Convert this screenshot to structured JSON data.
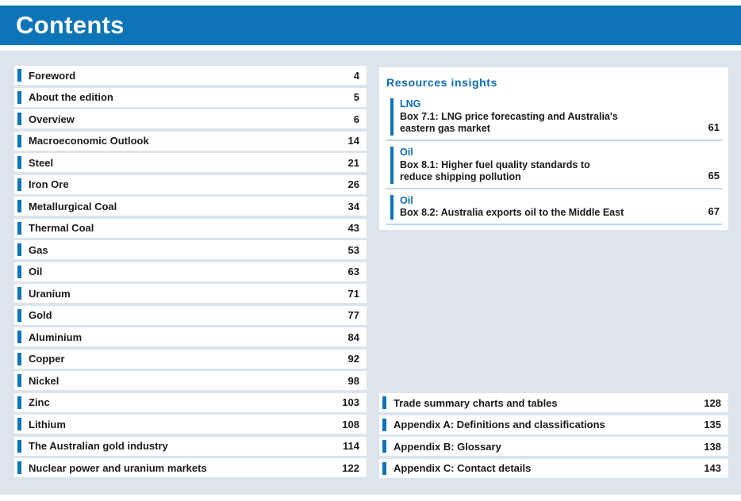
{
  "header": {
    "title": "Contents"
  },
  "colors": {
    "header_blue": "#0d74b8",
    "accent_blue": "#0d74b8",
    "insights_title_blue": "#0c6cb3",
    "category_blue": "#0c6cb3",
    "page_background": "#dde4ec",
    "row_background": "#ffffff",
    "text_color": "#1a1a1a",
    "divider_blue": "#bcd9ee"
  },
  "toc_left": {
    "items": [
      {
        "title": "Foreword",
        "page": "4"
      },
      {
        "title": "About the edition",
        "page": "5"
      },
      {
        "title": "Overview",
        "page": "6"
      },
      {
        "title": "Macroeconomic Outlook",
        "page": "14"
      },
      {
        "title": "Steel",
        "page": "21"
      },
      {
        "title": "Iron Ore",
        "page": "26"
      },
      {
        "title": "Metallurgical Coal",
        "page": "34"
      },
      {
        "title": "Thermal Coal",
        "page": "43"
      },
      {
        "title": "Gas",
        "page": "53"
      },
      {
        "title": "Oil",
        "page": "63"
      },
      {
        "title": "Uranium",
        "page": "71"
      },
      {
        "title": "Gold",
        "page": "77"
      },
      {
        "title": "Aluminium",
        "page": "84"
      },
      {
        "title": "Copper",
        "page": "92"
      },
      {
        "title": "Nickel",
        "page": "98"
      },
      {
        "title": "Zinc",
        "page": "103"
      },
      {
        "title": "Lithium",
        "page": "108"
      },
      {
        "title": "The Australian gold industry",
        "page": "114"
      },
      {
        "title": "Nuclear power and uranium markets",
        "page": "122"
      }
    ]
  },
  "insights": {
    "title": "Resources insights",
    "items": [
      {
        "category": "LNG",
        "text": "Box 7.1: LNG price forecasting and Australia's\neastern gas market",
        "page": "61"
      },
      {
        "category": "Oil",
        "text": "Box 8.1: Higher fuel quality standards to\nreduce shipping pollution",
        "page": "65"
      },
      {
        "category": "Oil",
        "text": "Box 8.2: Australia exports oil to the Middle East",
        "page": "67"
      }
    ]
  },
  "toc_right": {
    "items": [
      {
        "title": "Trade summary charts and tables",
        "page": "128"
      },
      {
        "title": "Appendix A: Definitions and classifications",
        "page": "135"
      },
      {
        "title": "Appendix B: Glossary",
        "page": "138"
      },
      {
        "title": "Appendix C: Contact details",
        "page": "143"
      }
    ]
  }
}
